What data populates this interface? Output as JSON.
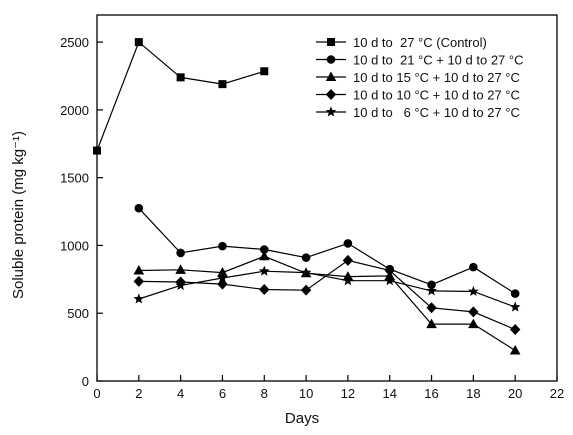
{
  "chart_data": {
    "type": "line",
    "title": "",
    "xlabel": "Days",
    "ylabel": "Soluble protein (mg kg⁻¹)",
    "xlim": [
      0,
      22
    ],
    "ylim": [
      0,
      2700
    ],
    "x_ticks": [
      0,
      2,
      4,
      6,
      8,
      10,
      12,
      14,
      16,
      18,
      20,
      22
    ],
    "y_ticks": [
      0,
      500,
      1000,
      1500,
      2000,
      2500
    ],
    "grid": false,
    "legend_position": "top-right",
    "series": [
      {
        "name": "10 d to  27 °C (Control)",
        "marker": "square",
        "x": [
          0,
          2,
          4,
          6,
          8
        ],
        "y": [
          1700,
          2500,
          2240,
          2190,
          2285
        ]
      },
      {
        "name": "10 d to  21 °C + 10 d to 27 °C",
        "marker": "circle",
        "x": [
          2,
          4,
          6,
          8,
          10,
          12,
          14,
          16,
          18,
          20
        ],
        "y": [
          1275,
          945,
          995,
          970,
          910,
          1015,
          825,
          710,
          840,
          645
        ]
      },
      {
        "name": "10 d to 15 °C + 10 d to 27 °C",
        "marker": "triangle",
        "x": [
          2,
          4,
          6,
          8,
          10,
          12,
          14,
          16,
          18,
          20
        ],
        "y": [
          815,
          820,
          800,
          920,
          795,
          770,
          775,
          420,
          420,
          225
        ]
      },
      {
        "name": "10 d to 10 °C + 10 d to 27 °C",
        "marker": "diamond",
        "x": [
          2,
          4,
          6,
          8,
          10,
          12,
          14,
          16,
          18,
          20
        ],
        "y": [
          735,
          730,
          715,
          675,
          670,
          890,
          815,
          540,
          510,
          380
        ]
      },
      {
        "name": "10 d to   6 °C + 10 d to 27 °C",
        "marker": "star",
        "x": [
          2,
          4,
          6,
          8,
          10,
          12,
          14,
          16,
          18,
          20
        ],
        "y": [
          605,
          705,
          760,
          810,
          800,
          740,
          740,
          665,
          660,
          545
        ]
      }
    ]
  }
}
